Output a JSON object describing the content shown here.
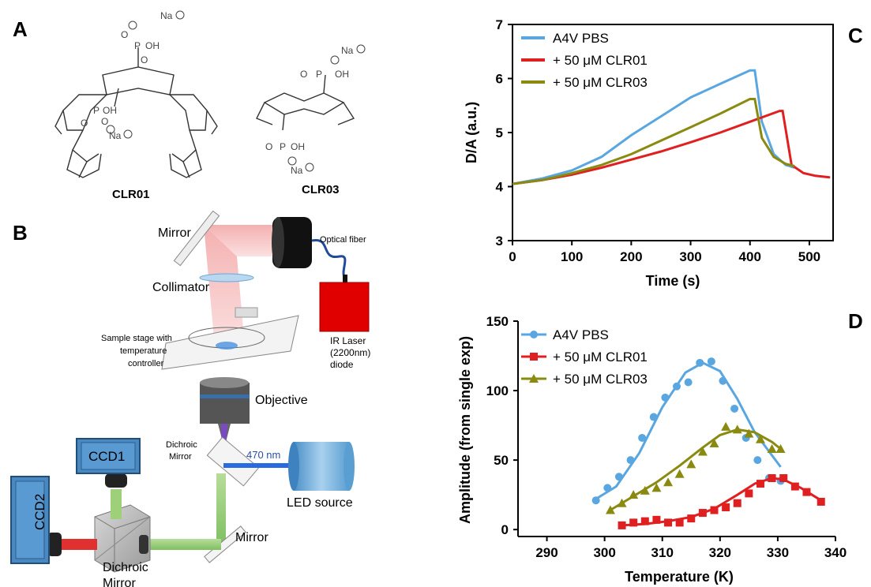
{
  "panels": {
    "a": "A",
    "b": "B",
    "c": "C",
    "d": "D"
  },
  "molecules": {
    "clr01": {
      "label": "CLR01",
      "na1": "Na",
      "na2": "Na",
      "o_minus": "O",
      "oh": "OH",
      "p": "P",
      "o": "O"
    },
    "clr03": {
      "label": "CLR03",
      "na1": "Na",
      "na2": "Na",
      "oh": "OH",
      "p": "P",
      "o": "O"
    }
  },
  "setup": {
    "mirror_top": "Mirror",
    "optical_fiber": "Optical fiber",
    "collimator": "Collimator",
    "sample_stage": [
      "Sample stage with",
      "temperature",
      "controller"
    ],
    "ir_laser": [
      "IR Laser",
      "(2200nm)",
      "diode"
    ],
    "objective": "Objective",
    "dichroic_top": [
      "Dichroic",
      "Mirror"
    ],
    "wavelength": "470 nm",
    "ccd1": "CCD1",
    "ccd2": "CCD2",
    "led_source": "LED source",
    "mirror_bottom": "Mirror",
    "dichroic_bottom": [
      "Dichroic",
      "Mirror"
    ]
  },
  "colors": {
    "a4v": "#5aa6e0",
    "clr01": "#e02020",
    "clr03": "#8a8a10"
  },
  "chart_data": [
    {
      "type": "line",
      "panel": "C",
      "xlabel": "Time (s)",
      "ylabel": "D/A (a.u.)",
      "xlim": [
        0,
        540
      ],
      "ylim": [
        3,
        7
      ],
      "xticks": [
        0,
        100,
        200,
        300,
        400,
        500
      ],
      "yticks": [
        3,
        4,
        5,
        6,
        7
      ],
      "legend": "top-left",
      "series": [
        {
          "name": "A4V PBS",
          "color": "#5aa6e0",
          "x": [
            0,
            50,
            100,
            150,
            200,
            250,
            300,
            350,
            400,
            408,
            420,
            440,
            460,
            475
          ],
          "y": [
            4.05,
            4.15,
            4.3,
            4.55,
            4.95,
            5.3,
            5.65,
            5.9,
            6.15,
            6.15,
            5.2,
            4.6,
            4.4,
            4.35
          ]
        },
        {
          "name": "+ 50 μM CLR01",
          "color": "#e02020",
          "x": [
            0,
            50,
            100,
            150,
            200,
            250,
            300,
            350,
            400,
            450,
            455,
            470,
            490,
            510,
            535
          ],
          "y": [
            4.05,
            4.12,
            4.22,
            4.35,
            4.5,
            4.65,
            4.82,
            5.0,
            5.2,
            5.4,
            5.4,
            4.4,
            4.25,
            4.2,
            4.17
          ]
        },
        {
          "name": "+ 50 μM CLR03",
          "color": "#8a8a10",
          "x": [
            0,
            50,
            100,
            150,
            200,
            250,
            300,
            350,
            400,
            408,
            420,
            440,
            460,
            475
          ],
          "y": [
            4.05,
            4.12,
            4.25,
            4.4,
            4.6,
            4.85,
            5.1,
            5.35,
            5.62,
            5.62,
            4.9,
            4.55,
            4.42,
            4.38
          ]
        }
      ]
    },
    {
      "type": "scatter",
      "panel": "D",
      "xlabel": "Temperature (K)",
      "ylabel": "Amplitude (from single exp)",
      "xlim": [
        285,
        340
      ],
      "ylim": [
        -5,
        150
      ],
      "xticks": [
        290,
        300,
        310,
        320,
        330,
        340
      ],
      "yticks": [
        0,
        50,
        100,
        150
      ],
      "legend": "top-left",
      "series": [
        {
          "name": "A4V PBS",
          "color": "#5aa6e0",
          "marker": "circle",
          "x": [
            298.5,
            300.5,
            302.5,
            304.5,
            306.5,
            308.5,
            310.5,
            312.5,
            314.5,
            316.5,
            318.5,
            320.5,
            322.5,
            324.5,
            326.5,
            328.5,
            330.5
          ],
          "y": [
            21,
            30,
            38,
            50,
            66,
            81,
            95,
            103,
            106,
            120,
            121,
            107,
            87,
            66,
            50,
            37,
            35
          ],
          "fit_x": [
            298.5,
            302,
            306,
            310,
            314,
            317,
            320,
            323,
            326,
            330.5
          ],
          "fit_y": [
            22,
            31,
            55,
            88,
            113,
            120,
            114,
            94,
            70,
            45
          ]
        },
        {
          "name": "+ 50 μM CLR01",
          "color": "#e02020",
          "marker": "square",
          "x": [
            303,
            305,
            307,
            309,
            311,
            313,
            315,
            317,
            319,
            321,
            323,
            325,
            327,
            329,
            331,
            333,
            335,
            337.5
          ],
          "y": [
            3,
            5,
            6,
            7,
            5,
            5,
            8,
            12,
            14,
            16,
            19,
            26,
            33,
            37,
            37,
            31,
            27,
            20
          ],
          "fit_x": [
            303,
            307,
            311,
            315,
            319,
            323,
            326,
            329,
            331,
            334,
            337.5
          ],
          "fit_y": [
            3,
            4,
            6,
            9,
            15,
            25,
            33,
            37,
            36,
            30,
            21
          ]
        },
        {
          "name": "+ 50 μM CLR03",
          "color": "#8a8a10",
          "marker": "triangle",
          "x": [
            301,
            303,
            305,
            307,
            309,
            311,
            313,
            315,
            317,
            319,
            321,
            323,
            325,
            327,
            329,
            330.5
          ],
          "y": [
            14,
            19,
            25,
            28,
            30,
            34,
            40,
            47,
            56,
            62,
            74,
            72,
            69,
            65,
            58,
            58
          ],
          "fit_x": [
            301,
            305,
            309,
            313,
            317,
            320,
            323,
            326,
            329,
            330.5
          ],
          "fit_y": [
            14,
            24,
            34,
            46,
            59,
            68,
            72,
            70,
            63,
            58
          ]
        }
      ]
    }
  ]
}
